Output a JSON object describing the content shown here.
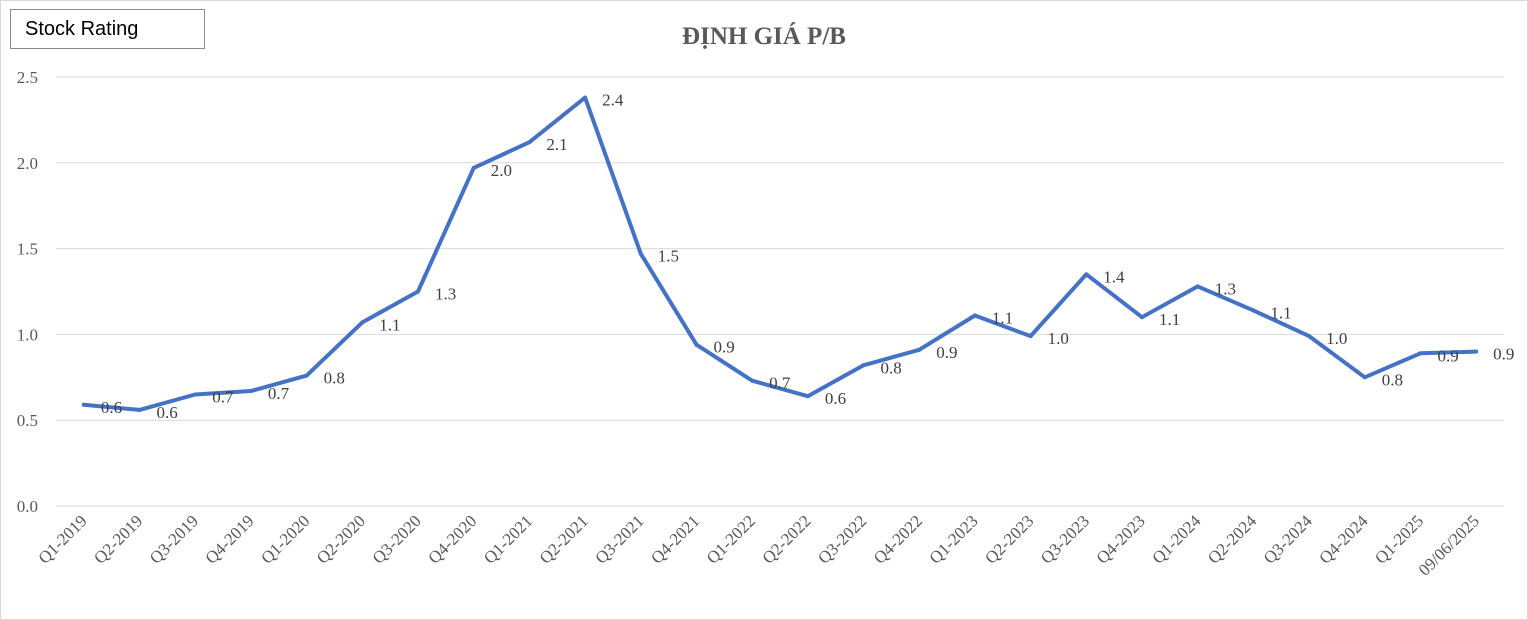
{
  "legend_label": "Stock Rating",
  "chart_data": {
    "type": "line",
    "title": "ĐỊNH GIÁ P/B",
    "xlabel": "",
    "ylabel": "",
    "ylim": [
      0,
      2.5
    ],
    "yticks": [
      "0.0",
      "0.5",
      "1.0",
      "1.5",
      "2.0",
      "2.5"
    ],
    "grid": true,
    "line_color": "#4472c4",
    "categories": [
      "Q1-2019",
      "Q2-2019",
      "Q3-2019",
      "Q4-2019",
      "Q1-2020",
      "Q2-2020",
      "Q3-2020",
      "Q4-2020",
      "Q1-2021",
      "Q2-2021",
      "Q3-2021",
      "Q4-2021",
      "Q1-2022",
      "Q2-2022",
      "Q3-2022",
      "Q4-2022",
      "Q1-2023",
      "Q2-2023",
      "Q3-2023",
      "Q4-2023",
      "Q1-2024",
      "Q2-2024",
      "Q3-2024",
      "Q4-2024",
      "Q1-2025",
      "09/06/2025"
    ],
    "series": [
      {
        "name": "Stock Rating",
        "values": [
          0.59,
          0.56,
          0.65,
          0.67,
          0.76,
          1.07,
          1.25,
          1.97,
          2.12,
          2.38,
          1.47,
          0.94,
          0.73,
          0.64,
          0.82,
          0.91,
          1.11,
          0.99,
          1.35,
          1.1,
          1.28,
          1.14,
          0.99,
          0.75,
          0.89,
          0.9
        ],
        "labels": [
          "0.6",
          "0.6",
          "0.7",
          "0.7",
          "0.8",
          "1.1",
          "1.3",
          "2.0",
          "2.1",
          "2.4",
          "1.5",
          "0.9",
          "0.7",
          "0.6",
          "0.8",
          "0.9",
          "1.1",
          "1.0",
          "1.4",
          "1.1",
          "1.3",
          "1.1",
          "1.0",
          "0.8",
          "0.9",
          "0.9"
        ]
      }
    ]
  }
}
